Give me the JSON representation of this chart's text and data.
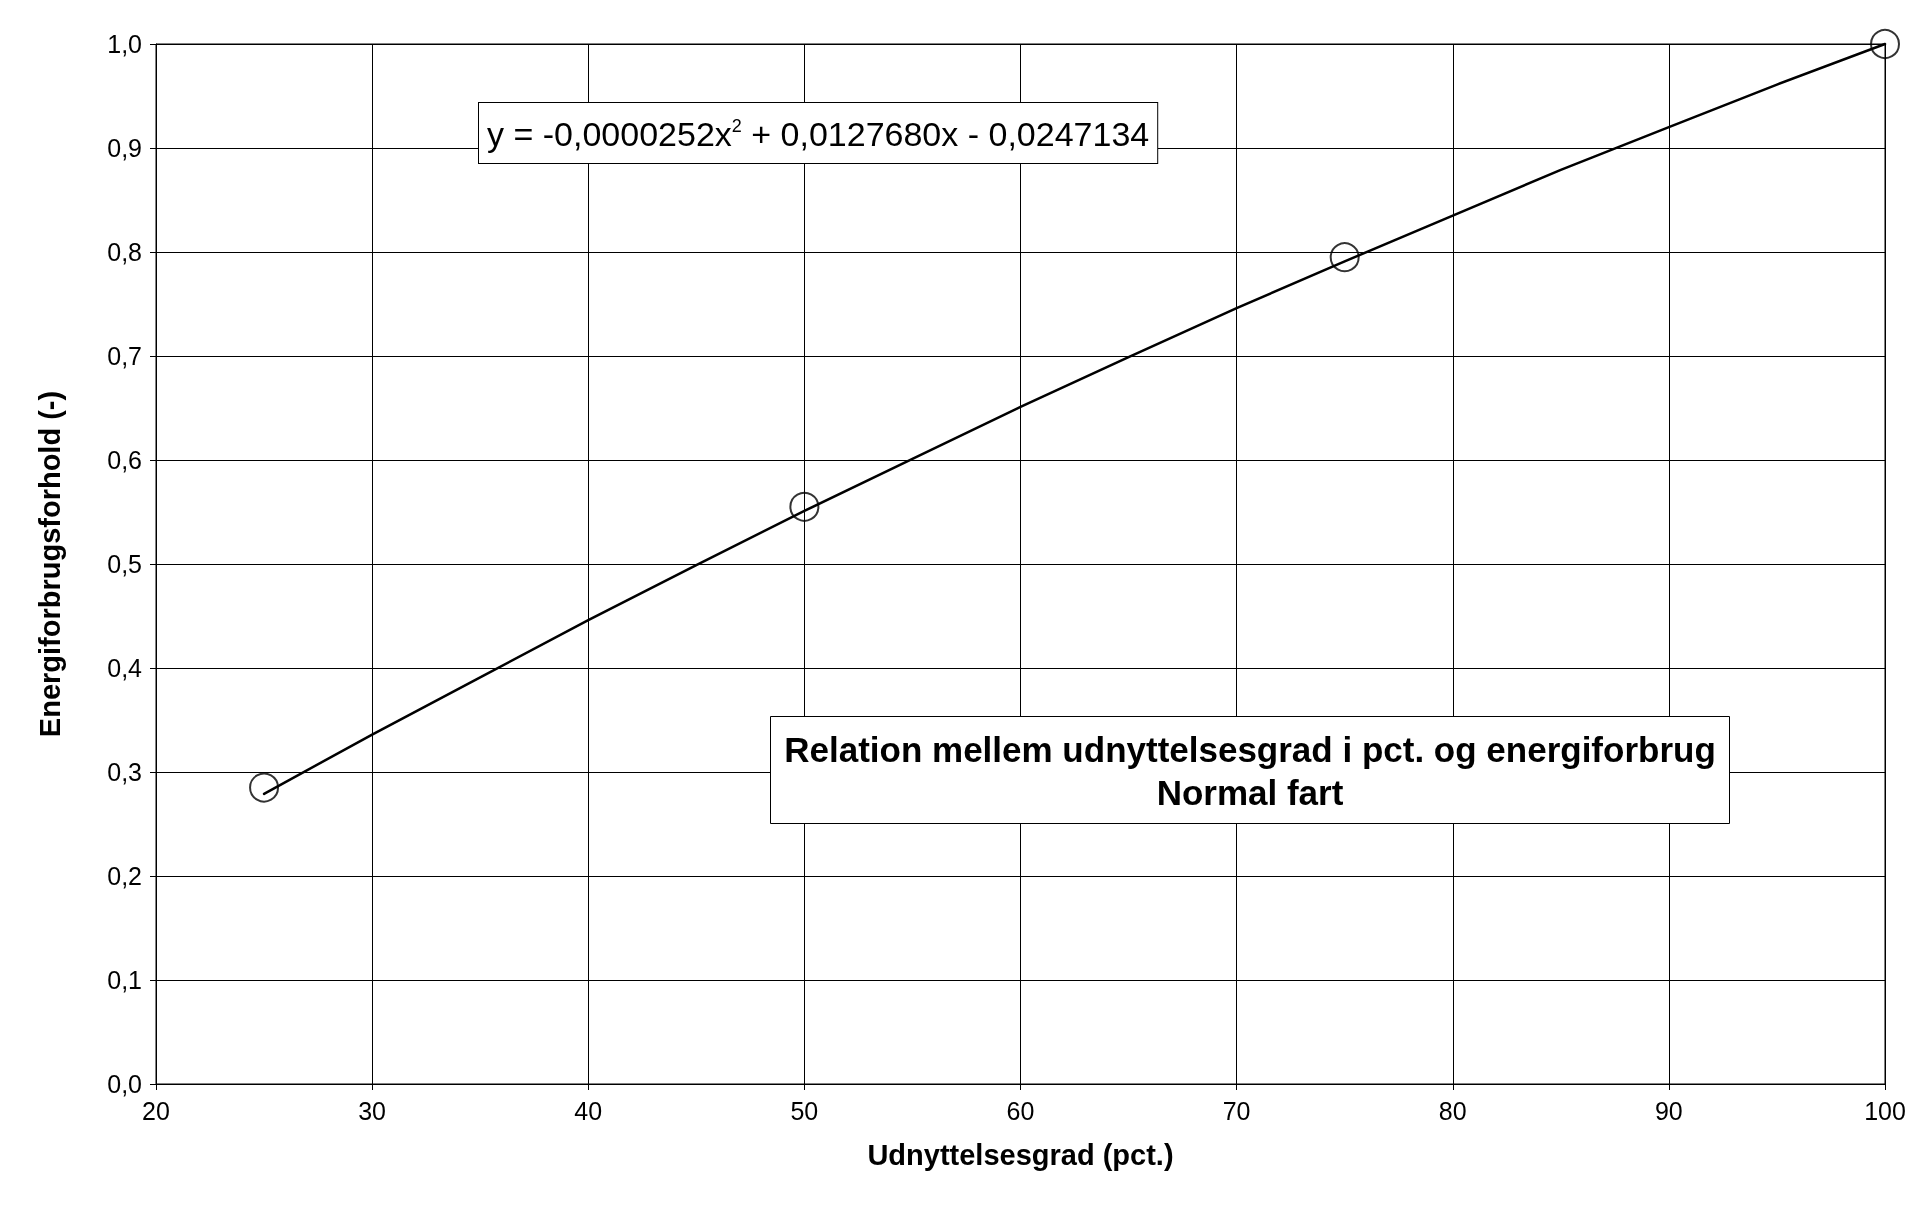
{
  "chart_data": {
    "type": "scatter",
    "title": "Relation mellem udnyttelsesgrad i pct. og energiforbrug",
    "subtitle": "Normal fart",
    "xlabel": "Udnyttelsesgrad (pct.)",
    "ylabel": "Energiforbrugsforhold (-)",
    "annotations": [
      "y = -0,0000252x$^{2}$ + 0,0127680x - 0,0247134"
    ],
    "series": [
      {
        "type": "scatter",
        "color": "#000000",
        "marker": "circle",
        "x": [
          25,
          50,
          75,
          100
        ],
        "values": [
          0.285,
          0.555,
          0.795,
          1.0
        ]
      },
      {
        "type": "line",
        "color": "#000000",
        "marker": "none",
        "line_style": "solid",
        "x": [
          25,
          30,
          35,
          40,
          45,
          50,
          55,
          60,
          65,
          70,
          75,
          80,
          85,
          90,
          95,
          100
        ],
        "values": [
          0.279,
          0.336,
          0.391,
          0.446,
          0.499,
          0.551,
          0.601,
          0.651,
          0.699,
          0.746,
          0.791,
          0.835,
          0.879,
          0.92,
          0.961,
          1.0
        ]
      }
    ],
    "xlim": [
      20,
      100
    ],
    "xticks": [
      20,
      30,
      40,
      50,
      60,
      70,
      80,
      90,
      100
    ],
    "ylim": [
      0,
      1
    ],
    "yticks": [
      {
        "value": 0,
        "label": "0,0"
      },
      {
        "value": 0.1,
        "label": "0,1"
      },
      {
        "value": 0.2,
        "label": "0,2"
      },
      {
        "value": 0.3,
        "label": "0,3"
      },
      {
        "value": 0.4,
        "label": "0,4"
      },
      {
        "value": 0.5,
        "label": "0,5"
      },
      {
        "value": 0.6,
        "label": "0,6"
      },
      {
        "value": 0.7,
        "label": "0,7"
      },
      {
        "value": 0.8,
        "label": "0,8"
      },
      {
        "value": 0.9,
        "label": "0,9"
      },
      {
        "value": 1,
        "label": "1,0"
      }
    ],
    "grid": true
  }
}
